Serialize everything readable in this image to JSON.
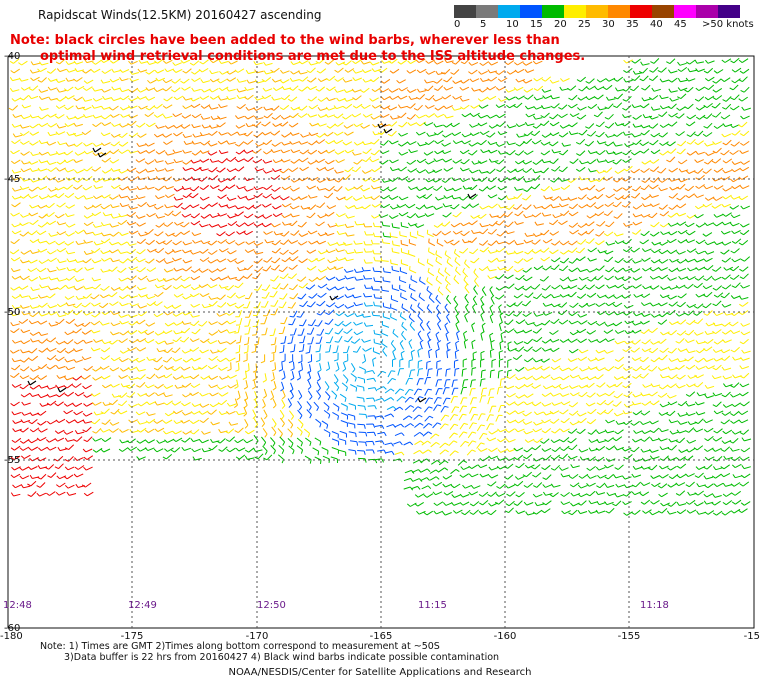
{
  "title": "Rapidscat Winds(12.5KM) 20160427 ascending",
  "note_line1": "Note: black circles have been added to the wind barbs, wherever less than",
  "note_line2": "optimal wind retrieval conditions are met due to the ISS altitude changes.",
  "colorbar": {
    "colors": [
      "#444444",
      "#7a7a7a",
      "#00aaee",
      "#0055ff",
      "#00bb00",
      "#ffee00",
      "#ffbb00",
      "#ff8800",
      "#ee0000",
      "#994400",
      "#ff00ff",
      "#aa00aa",
      "#440088"
    ],
    "tick_labels": [
      "0",
      "5",
      "10",
      "15",
      "20",
      "25",
      "30",
      "35",
      "40",
      "45",
      ">50 knots"
    ]
  },
  "axes": {
    "lon_labels": [
      "-180",
      "-175",
      "-170",
      "-165",
      "-160",
      "-155",
      "-15"
    ],
    "lat_labels": [
      "-40",
      "-45",
      "-50",
      "-55",
      "-60"
    ]
  },
  "time_labels": [
    "12:48",
    "12:49",
    "12:50",
    "11:15",
    "11:18"
  ],
  "footnote_line1": "Note: 1) Times are GMT 2)Times along bottom correspond to measurement at ~50S",
  "footnote_line2": "3)Data buffer is 22 hrs from 20160427 4) Black wind barbs indicate possible contamination",
  "credit": "NOAA/NESDIS/Center for Satellite Applications and Research"
}
